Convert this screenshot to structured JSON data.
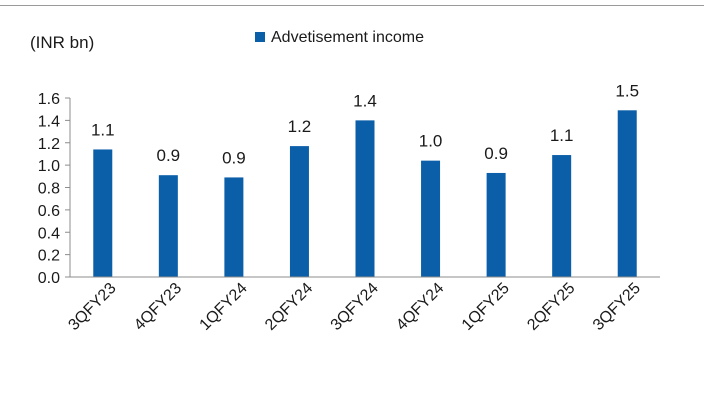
{
  "chart_data": {
    "type": "bar",
    "unit_label": "(INR bn)",
    "categories": [
      "3QFY23",
      "4QFY23",
      "1QFY24",
      "2QFY24",
      "3QFY24",
      "4QFY24",
      "1QFY25",
      "2QFY25",
      "3QFY25"
    ],
    "series": [
      {
        "name": "Advetisement income",
        "values": [
          1.14,
          0.91,
          0.89,
          1.17,
          1.4,
          1.04,
          0.93,
          1.09,
          1.49
        ],
        "labels": [
          "1.1",
          "0.9",
          "0.9",
          "1.2",
          "1.4",
          "1.0",
          "0.9",
          "1.1",
          "1.5"
        ],
        "color": "#0b5ea8"
      }
    ],
    "ylim": [
      0,
      1.6
    ],
    "yticks": [
      0.0,
      0.2,
      0.4,
      0.6,
      0.8,
      1.0,
      1.2,
      1.4,
      1.6
    ],
    "ytick_labels": [
      "0.0",
      "0.2",
      "0.4",
      "0.6",
      "0.8",
      "1.0",
      "1.2",
      "1.4",
      "1.6"
    ],
    "grid": false,
    "legend_position": "top-center"
  }
}
